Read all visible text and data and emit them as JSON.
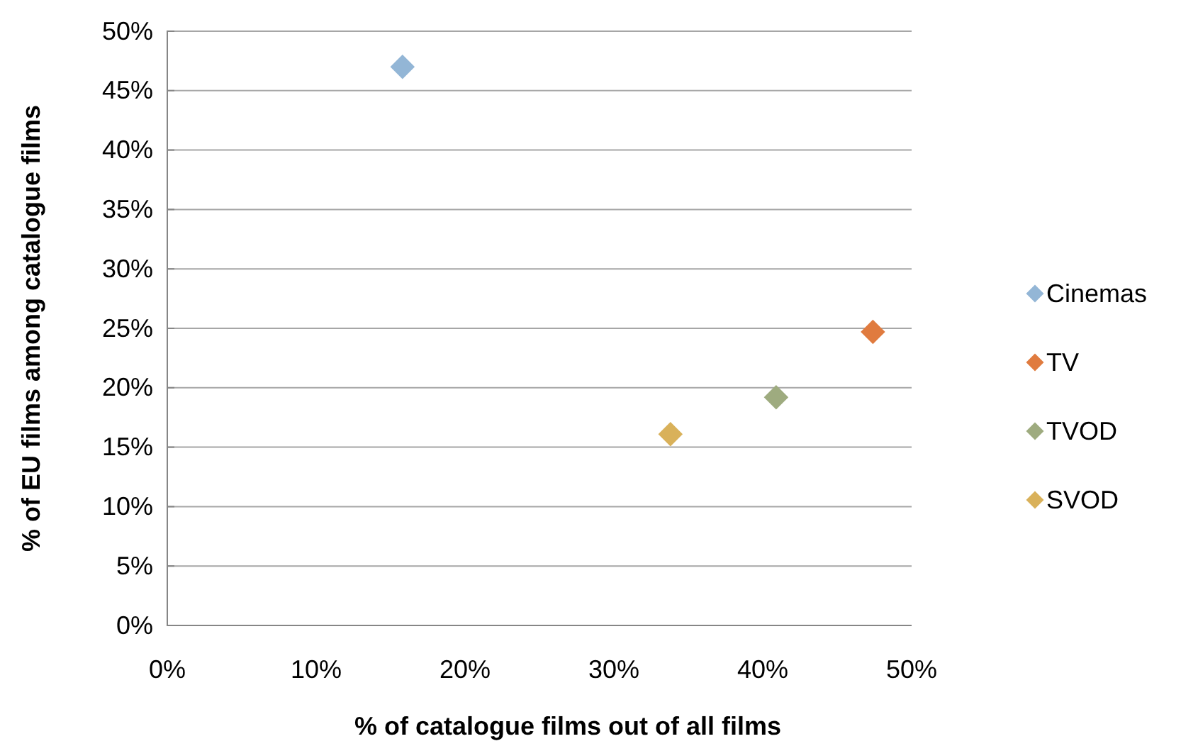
{
  "chart_data": {
    "type": "scatter",
    "xlabel": "% of catalogue films out of all films",
    "ylabel": "% of EU films among catalogue films",
    "series": [
      {
        "name": "Cinemas",
        "color": "#93b6d6",
        "x": [
          15.8
        ],
        "values": [
          47.0
        ]
      },
      {
        "name": "TV",
        "color": "#e07b3f",
        "x": [
          47.4
        ],
        "values": [
          24.7
        ]
      },
      {
        "name": "TVOD",
        "color": "#9eab7f",
        "x": [
          40.9
        ],
        "values": [
          19.2
        ]
      },
      {
        "name": "SVOD",
        "color": "#d9b15a",
        "x": [
          33.8
        ],
        "values": [
          16.1
        ]
      }
    ],
    "xlim": [
      0,
      50
    ],
    "xticks": [
      {
        "value": 0,
        "label": "0%"
      },
      {
        "value": 10,
        "label": "10%"
      },
      {
        "value": 20,
        "label": "20%"
      },
      {
        "value": 30,
        "label": "30%"
      },
      {
        "value": 40,
        "label": "40%"
      },
      {
        "value": 50,
        "label": "50%"
      }
    ],
    "ylim": [
      0,
      50
    ],
    "yticks": [
      {
        "value": 0,
        "label": "0%"
      },
      {
        "value": 5,
        "label": "5%"
      },
      {
        "value": 10,
        "label": "10%"
      },
      {
        "value": 15,
        "label": "15%"
      },
      {
        "value": 20,
        "label": "20%"
      },
      {
        "value": 25,
        "label": "25%"
      },
      {
        "value": 30,
        "label": "30%"
      },
      {
        "value": 35,
        "label": "35%"
      },
      {
        "value": 40,
        "label": "40%"
      },
      {
        "value": 45,
        "label": "45%"
      },
      {
        "value": 50,
        "label": "50%"
      }
    ],
    "grid": "y",
    "legend": "right",
    "marker": "diamond"
  }
}
